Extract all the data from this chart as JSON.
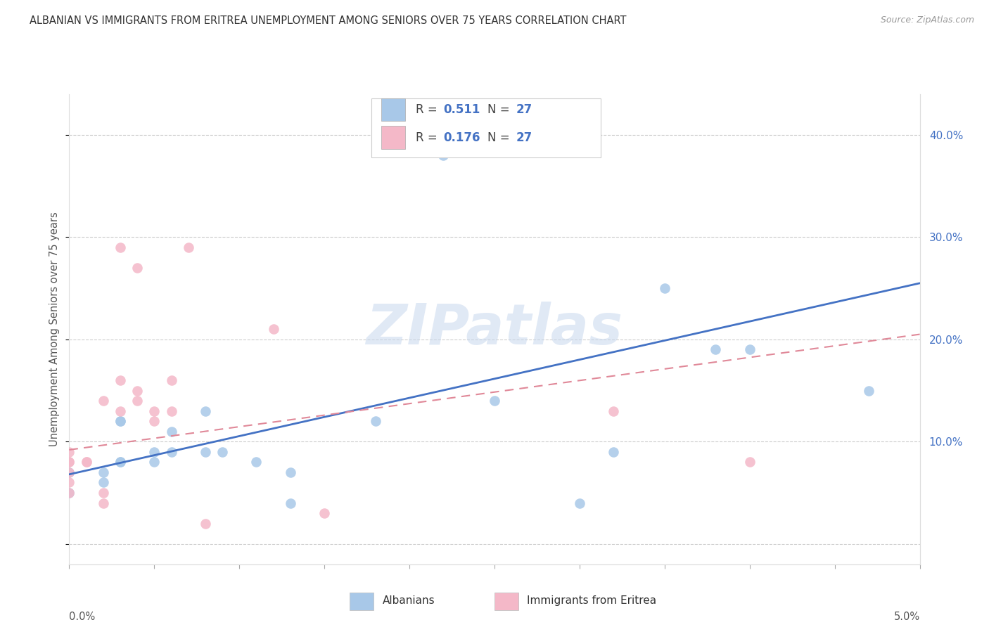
{
  "title": "ALBANIAN VS IMMIGRANTS FROM ERITREA UNEMPLOYMENT AMONG SENIORS OVER 75 YEARS CORRELATION CHART",
  "source": "Source: ZipAtlas.com",
  "ylabel": "Unemployment Among Seniors over 75 years",
  "xlim": [
    0.0,
    0.05
  ],
  "ylim": [
    -0.02,
    0.44
  ],
  "yticks": [
    0.0,
    0.1,
    0.2,
    0.3,
    0.4
  ],
  "ytick_labels_right": [
    "",
    "10.0%",
    "20.0%",
    "30.0%",
    "40.0%"
  ],
  "watermark_text": "ZIPatlas",
  "albanians_x": [
    0.0,
    0.0,
    0.002,
    0.002,
    0.003,
    0.003,
    0.003,
    0.003,
    0.005,
    0.005,
    0.006,
    0.006,
    0.008,
    0.008,
    0.009,
    0.011,
    0.013,
    0.013,
    0.018,
    0.022,
    0.025,
    0.03,
    0.032,
    0.035,
    0.038,
    0.04,
    0.047
  ],
  "albanians_y": [
    0.07,
    0.05,
    0.07,
    0.06,
    0.08,
    0.08,
    0.12,
    0.12,
    0.08,
    0.09,
    0.09,
    0.11,
    0.09,
    0.13,
    0.09,
    0.08,
    0.04,
    0.07,
    0.12,
    0.38,
    0.14,
    0.04,
    0.09,
    0.25,
    0.19,
    0.19,
    0.15
  ],
  "eritrea_x": [
    0.0,
    0.0,
    0.0,
    0.0,
    0.0,
    0.0,
    0.001,
    0.001,
    0.002,
    0.002,
    0.002,
    0.003,
    0.003,
    0.003,
    0.004,
    0.004,
    0.004,
    0.005,
    0.005,
    0.006,
    0.006,
    0.007,
    0.008,
    0.012,
    0.015,
    0.032,
    0.04
  ],
  "eritrea_y": [
    0.07,
    0.06,
    0.08,
    0.08,
    0.09,
    0.05,
    0.08,
    0.08,
    0.04,
    0.05,
    0.14,
    0.13,
    0.29,
    0.16,
    0.14,
    0.15,
    0.27,
    0.12,
    0.13,
    0.13,
    0.16,
    0.29,
    0.02,
    0.21,
    0.03,
    0.13,
    0.08
  ],
  "albanian_line_x": [
    0.0,
    0.05
  ],
  "albanian_line_y": [
    0.068,
    0.255
  ],
  "eritrea_line_x": [
    0.0,
    0.05
  ],
  "eritrea_line_y": [
    0.092,
    0.205
  ],
  "dot_size": 110,
  "blue_dot_color": "#a8c8e8",
  "pink_dot_color": "#f4b8c8",
  "blue_line_color": "#4472c4",
  "pink_line_color": "#e08898",
  "blue_text_color": "#4472c4",
  "label_text_color": "#555555",
  "background_color": "#ffffff",
  "grid_color": "#cccccc",
  "legend_R1": "0.511",
  "legend_N1": "27",
  "legend_R2": "0.176",
  "legend_N2": "27",
  "bottom_label1": "Albanians",
  "bottom_label2": "Immigrants from Eritrea"
}
